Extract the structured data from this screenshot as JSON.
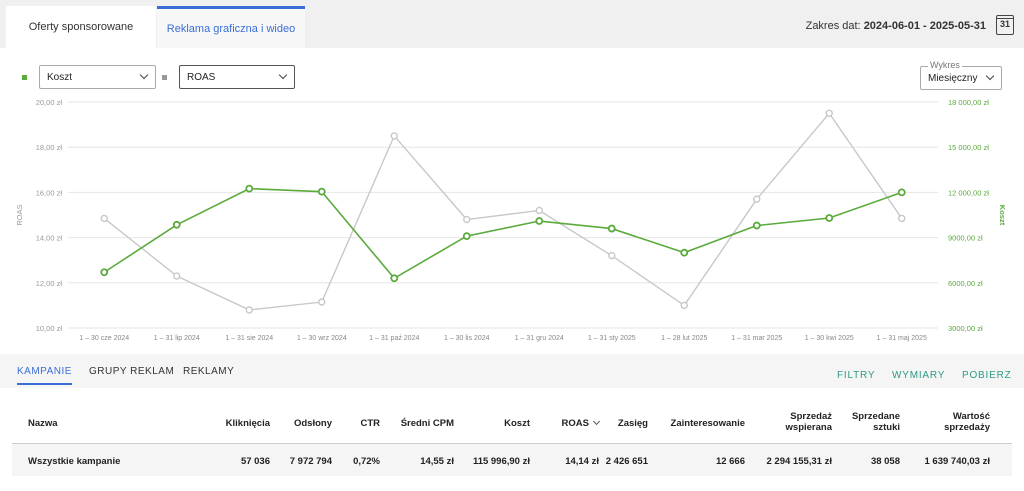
{
  "tabs": [
    "Oferty sponsorowane",
    "Reklama graficzna i wideo"
  ],
  "date_range": {
    "label": "Zakres dat:",
    "value": "2024-06-01 - 2025-05-31",
    "calendar_day": "31"
  },
  "controls": {
    "metric_left": "Koszt",
    "metric_right": "ROAS",
    "chart_field_label": "Wykres",
    "chart_period": "Miesięczny"
  },
  "colors": {
    "koszt": "#5aaa3c",
    "roas": "#c8c8c8",
    "accent": "#3a6fd8",
    "action": "#2e9a85"
  },
  "chart_data": {
    "type": "line",
    "categories": [
      "1 – 30 cze 2024",
      "1 – 31 lip 2024",
      "1 – 31 sie 2024",
      "1 – 30 wrz 2024",
      "1 – 31 paź 2024",
      "1 – 30 lis 2024",
      "1 – 31 gru 2024",
      "1 – 31 sty 2025",
      "1 – 28 lut 2025",
      "1 – 31 mar 2025",
      "1 – 30 kwi 2025",
      "1 – 31 maj 2025"
    ],
    "series": [
      {
        "name": "ROAS",
        "axis": "left",
        "values": [
          14.85,
          12.3,
          10.8,
          11.15,
          18.5,
          14.8,
          15.2,
          13.2,
          11.0,
          15.7,
          19.5,
          14.85
        ]
      },
      {
        "name": "Koszt",
        "axis": "right",
        "values": [
          6700,
          9850,
          12250,
          12050,
          6300,
          9100,
          10100,
          9600,
          8000,
          9800,
          10300,
          12000
        ]
      }
    ],
    "ylabel": "ROAS",
    "y2label": "Koszt",
    "ylim": [
      10,
      20
    ],
    "y2lim": [
      3000,
      18000
    ],
    "yticks": [
      "10,00 zł",
      "12,00 zł",
      "14,00 zł",
      "16,00 zł",
      "18,00 zł",
      "20,00 zł"
    ],
    "y2ticks": [
      "3000,00 zł",
      "6000,00 zł",
      "9000,00 zł",
      "12 000,00 zł",
      "15 000,00 zł",
      "18 000,00 zł"
    ],
    "grid": true
  },
  "lower_tabs": [
    "KAMPANIE",
    "GRUPY REKLAM",
    "REKLAMY"
  ],
  "actions": [
    "FILTRY",
    "WYMIARY",
    "POBIERZ"
  ],
  "table": {
    "headers": [
      "Nazwa",
      "Kliknięcia",
      "Odsłony",
      "CTR",
      "Średni CPM",
      "Koszt",
      "ROAS",
      "Zasięg",
      "Zainteresowanie",
      "Sprzedaż\nwspierana",
      "Sprzedane\nsztuki",
      "Wartość\nsprzedaży"
    ],
    "rows": [
      [
        "Wszystkie kampanie",
        "57 036",
        "7 972 794",
        "0,72%",
        "14,55 zł",
        "115 996,90 zł",
        "14,14 zł",
        "2 426 651",
        "12 666",
        "2 294 155,31 zł",
        "38 058",
        "1 639 740,03 zł"
      ]
    ]
  }
}
